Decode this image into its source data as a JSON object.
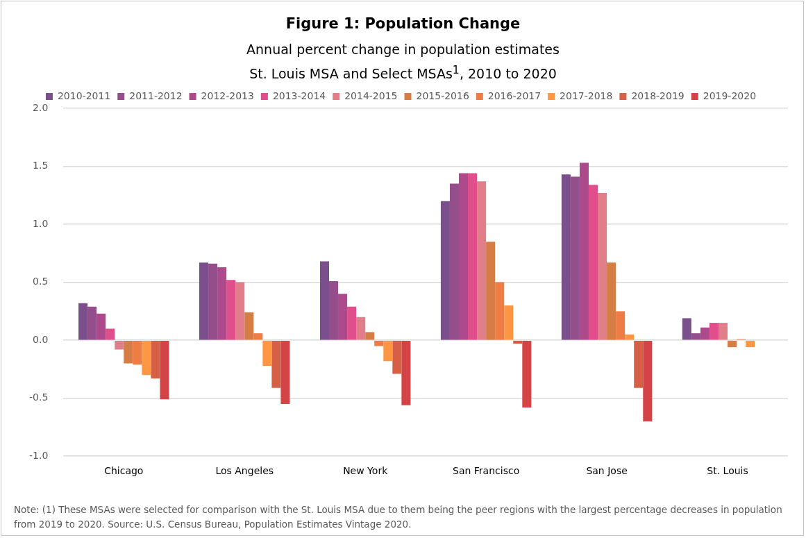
{
  "chart_data": {
    "type": "bar",
    "title": "Figure 1: Population Change",
    "subtitle": "Annual percent change in population estimates\nSt. Louis MSA and Select MSAs$^{1}$, 2010 to 2020",
    "categories": [
      "Chicago",
      "Los Angeles",
      "New York",
      "San Francisco",
      "San Jose",
      "St. Louis"
    ],
    "series": [
      {
        "name": "2010-2011",
        "color": "#7b4f8c",
        "values": [
          0.32,
          0.67,
          0.68,
          1.2,
          1.43,
          0.19
        ]
      },
      {
        "name": "2011-2012",
        "color": "#944e8c",
        "values": [
          0.29,
          0.66,
          0.51,
          1.35,
          1.41,
          0.06
        ]
      },
      {
        "name": "2012-2013",
        "color": "#ad4a8c",
        "values": [
          0.23,
          0.63,
          0.4,
          1.44,
          1.53,
          0.11
        ]
      },
      {
        "name": "2013-2014",
        "color": "#e04f8c",
        "values": [
          0.1,
          0.52,
          0.29,
          1.44,
          1.34,
          0.15
        ]
      },
      {
        "name": "2014-2015",
        "color": "#e07f8a",
        "values": [
          -0.08,
          0.5,
          0.2,
          1.37,
          1.27,
          0.15
        ]
      },
      {
        "name": "2015-2016",
        "color": "#d57d45",
        "values": [
          -0.2,
          0.24,
          0.07,
          0.85,
          0.67,
          -0.06
        ]
      },
      {
        "name": "2016-2017",
        "color": "#ee7d45",
        "values": [
          -0.21,
          0.06,
          -0.05,
          0.5,
          0.25,
          0.01
        ]
      },
      {
        "name": "2017-2018",
        "color": "#ff9644",
        "values": [
          -0.3,
          -0.22,
          -0.18,
          0.3,
          0.05,
          -0.06
        ]
      },
      {
        "name": "2018-2019",
        "color": "#d56045",
        "values": [
          -0.33,
          -0.41,
          -0.29,
          -0.03,
          -0.41,
          0
        ]
      },
      {
        "name": "2019-2020",
        "color": "#d44447",
        "values": [
          -0.51,
          -0.55,
          -0.56,
          -0.58,
          -0.7,
          0
        ]
      }
    ],
    "ylim": [
      -1,
      2
    ],
    "yticks": [
      {
        "value": -1,
        "label": "-1.0"
      },
      {
        "value": -0.5,
        "label": "-0.5"
      },
      {
        "value": 0,
        "label": "0.0"
      },
      {
        "value": 0.5,
        "label": "0.5"
      },
      {
        "value": 1,
        "label": "1.0"
      },
      {
        "value": 1.5,
        "label": "1.5"
      },
      {
        "value": 2,
        "label": "2.0"
      }
    ],
    "grid": "y",
    "legend": "top",
    "annotations": [
      "Note: (1) These MSAs were selected for comparison with the St. Louis MSA due to them being the peer regions with the largest percentage decreases in population from 2019 to 2020. Source: U.S. Census Bureau, Population Estimates Vintage 2020."
    ]
  }
}
